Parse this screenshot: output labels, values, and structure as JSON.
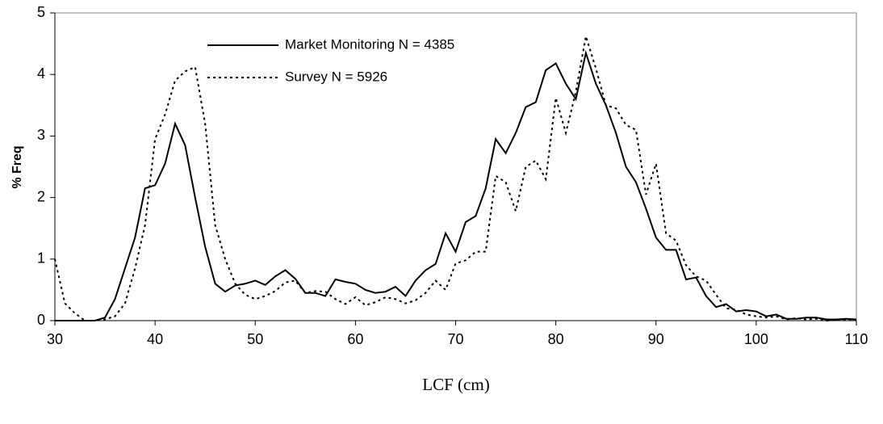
{
  "chart_data": {
    "type": "line",
    "x_label": "LCF (cm)",
    "y_label": "% Freq",
    "x": [
      30,
      31,
      32,
      33,
      34,
      35,
      36,
      37,
      38,
      39,
      40,
      41,
      42,
      43,
      44,
      45,
      46,
      47,
      48,
      49,
      50,
      51,
      52,
      53,
      54,
      55,
      56,
      57,
      58,
      59,
      60,
      61,
      62,
      63,
      64,
      65,
      66,
      67,
      68,
      69,
      70,
      71,
      72,
      73,
      74,
      75,
      76,
      77,
      78,
      79,
      80,
      81,
      82,
      83,
      84,
      85,
      86,
      87,
      88,
      89,
      90,
      91,
      92,
      93,
      94,
      95,
      96,
      97,
      98,
      99,
      100,
      101,
      102,
      103,
      104,
      105,
      106,
      107,
      108,
      109,
      110
    ],
    "series": [
      {
        "name": "Market Monitoring N = 4385",
        "color": "#000000",
        "dash": "solid",
        "values": [
          0,
          0,
          0,
          0,
          0,
          0.05,
          0.35,
          0.85,
          1.35,
          2.15,
          2.2,
          2.55,
          3.2,
          2.85,
          2.0,
          1.2,
          0.6,
          0.47,
          0.57,
          0.6,
          0.65,
          0.58,
          0.72,
          0.82,
          0.68,
          0.45,
          0.45,
          0.4,
          0.67,
          0.63,
          0.6,
          0.5,
          0.45,
          0.47,
          0.55,
          0.4,
          0.65,
          0.82,
          0.92,
          1.42,
          1.12,
          1.6,
          1.7,
          2.15,
          2.95,
          2.72,
          3.05,
          3.47,
          3.55,
          4.07,
          4.18,
          3.85,
          3.6,
          4.35,
          3.85,
          3.5,
          3.05,
          2.5,
          2.25,
          1.82,
          1.35,
          1.15,
          1.15,
          0.67,
          0.7,
          0.4,
          0.22,
          0.27,
          0.15,
          0.17,
          0.15,
          0.07,
          0.1,
          0.03,
          0.03,
          0.05,
          0.05,
          0.02,
          0.02,
          0.03,
          0.02
        ]
      },
      {
        "name": "Survey N = 5926",
        "color": "#000000",
        "dash": "dotted",
        "values": [
          1.0,
          0.28,
          0.12,
          0,
          0,
          0.02,
          0.07,
          0.28,
          0.85,
          1.55,
          2.95,
          3.35,
          3.9,
          4.05,
          4.12,
          3.2,
          1.55,
          1.0,
          0.6,
          0.42,
          0.35,
          0.4,
          0.48,
          0.62,
          0.65,
          0.45,
          0.48,
          0.47,
          0.35,
          0.27,
          0.38,
          0.25,
          0.3,
          0.38,
          0.35,
          0.28,
          0.33,
          0.45,
          0.65,
          0.5,
          0.93,
          0.98,
          1.12,
          1.12,
          2.35,
          2.25,
          1.78,
          2.5,
          2.6,
          2.3,
          3.62,
          3.05,
          3.72,
          4.62,
          4.1,
          3.5,
          3.45,
          3.18,
          3.1,
          2.05,
          2.55,
          1.42,
          1.3,
          0.9,
          0.72,
          0.65,
          0.42,
          0.2,
          0.18,
          0.1,
          0.07,
          0.05,
          0.07,
          0.02,
          0.04,
          0.02,
          0.03,
          0,
          0.01,
          0.02,
          0.01
        ]
      }
    ],
    "xlim": [
      30,
      110
    ],
    "xticks": [
      30,
      40,
      50,
      60,
      70,
      80,
      90,
      100,
      110
    ],
    "ylim": [
      0,
      5
    ],
    "yticks": [
      0,
      1,
      2,
      3,
      4,
      5
    ],
    "grid": false,
    "legend": "upper-left"
  }
}
